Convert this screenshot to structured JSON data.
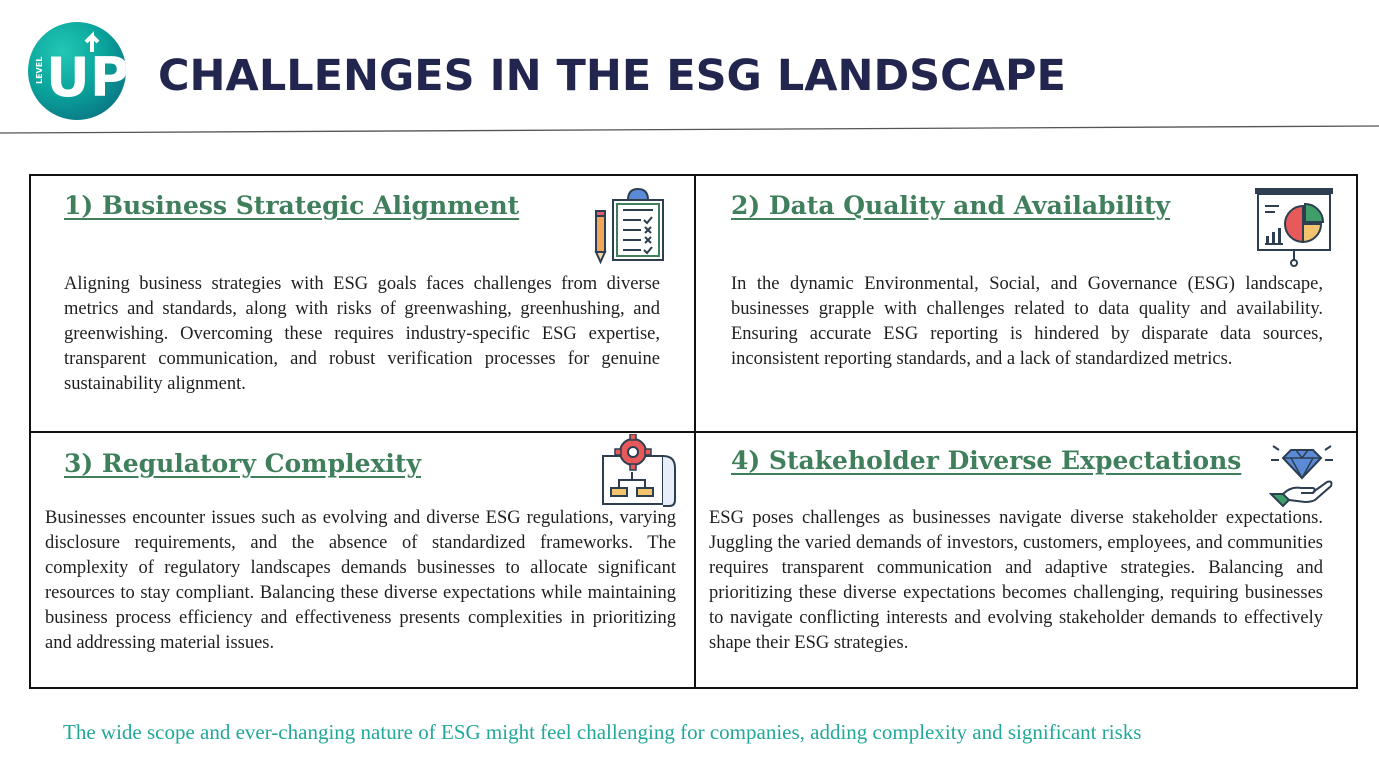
{
  "logo": {
    "text": "UP",
    "small_text": "LEVEL"
  },
  "title": "CHALLENGES IN THE ESG LANDSCAPE",
  "colors": {
    "title": "#22264f",
    "heading": "#3f7f5b",
    "footer": "#21a89a",
    "logo": "#0aa39b"
  },
  "sections": [
    {
      "heading": "1) Business Strategic Alignment",
      "icon": "clipboard-checklist-icon",
      "body": "Aligning business strategies with ESG goals faces challenges from diverse metrics and standards, along with risks of greenwashing, greenhushing, and greenwishing. Overcoming these requires industry-specific ESG expertise, transparent communication, and robust verification processes for genuine sustainability alignment."
    },
    {
      "heading": "2) Data Quality and Availability",
      "icon": "presentation-chart-icon",
      "body": "In the dynamic Environmental, Social, and Governance (ESG) landscape, businesses grapple with challenges related to data quality and availability. Ensuring accurate ESG reporting is hindered by disparate data sources, inconsistent reporting standards, and a lack of standardized metrics."
    },
    {
      "heading": "3) Regulatory Complexity",
      "icon": "gear-blueprint-icon",
      "body": "Businesses encounter issues such as evolving and diverse ESG regulations, varying disclosure requirements, and the absence of standardized frameworks. The complexity of regulatory landscapes demands businesses to allocate significant resources to stay compliant. Balancing these diverse expectations while maintaining business process efficiency and effectiveness presents complexities in prioritizing and addressing material issues."
    },
    {
      "heading": "4) Stakeholder Diverse Expectations",
      "icon": "hand-diamond-icon",
      "body": "ESG poses challenges as businesses navigate diverse stakeholder expectations. Juggling the varied demands of investors, customers, employees, and communities requires transparent communication and adaptive strategies. Balancing and prioritizing these diverse expectations becomes challenging, requiring businesses to navigate conflicting interests and evolving stakeholder demands to effectively shape their ESG strategies."
    }
  ],
  "footer": "The wide scope and ever-changing nature of ESG might feel challenging for companies, adding complexity and significant risks"
}
